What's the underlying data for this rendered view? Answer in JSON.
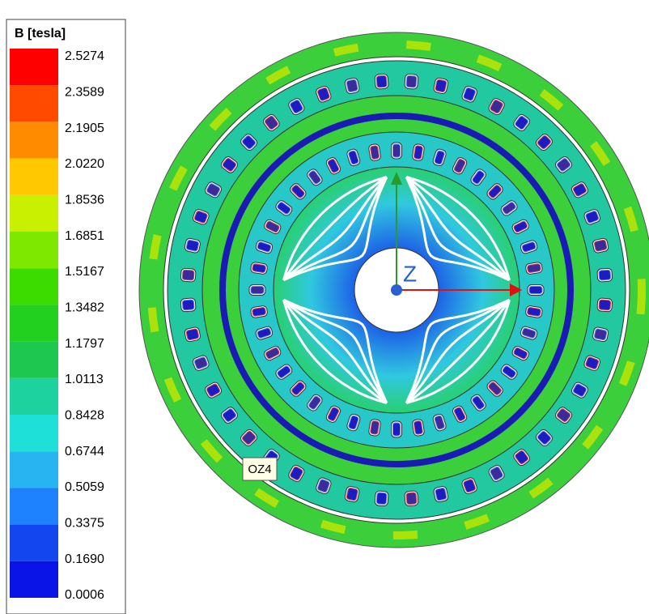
{
  "legend": {
    "title": "B [tesla]",
    "labels": [
      "2.5274",
      "2.3589",
      "2.1905",
      "2.0220",
      "1.8536",
      "1.6851",
      "1.5167",
      "1.3482",
      "1.1797",
      "1.0113",
      "0.8428",
      "0.6744",
      "0.5059",
      "0.3375",
      "0.1690",
      "0.0006"
    ],
    "colors": [
      "#ff0000",
      "#ff4a00",
      "#ff8c00",
      "#ffc800",
      "#c8f000",
      "#7ee800",
      "#3cdc00",
      "#22d020",
      "#1ec850",
      "#1ed2a0",
      "#1ee0d8",
      "#28b4f0",
      "#1e82ff",
      "#1446f0",
      "#0a14e6"
    ]
  },
  "viewport": {
    "axis_label": "Z",
    "tag": "OZ4"
  }
}
